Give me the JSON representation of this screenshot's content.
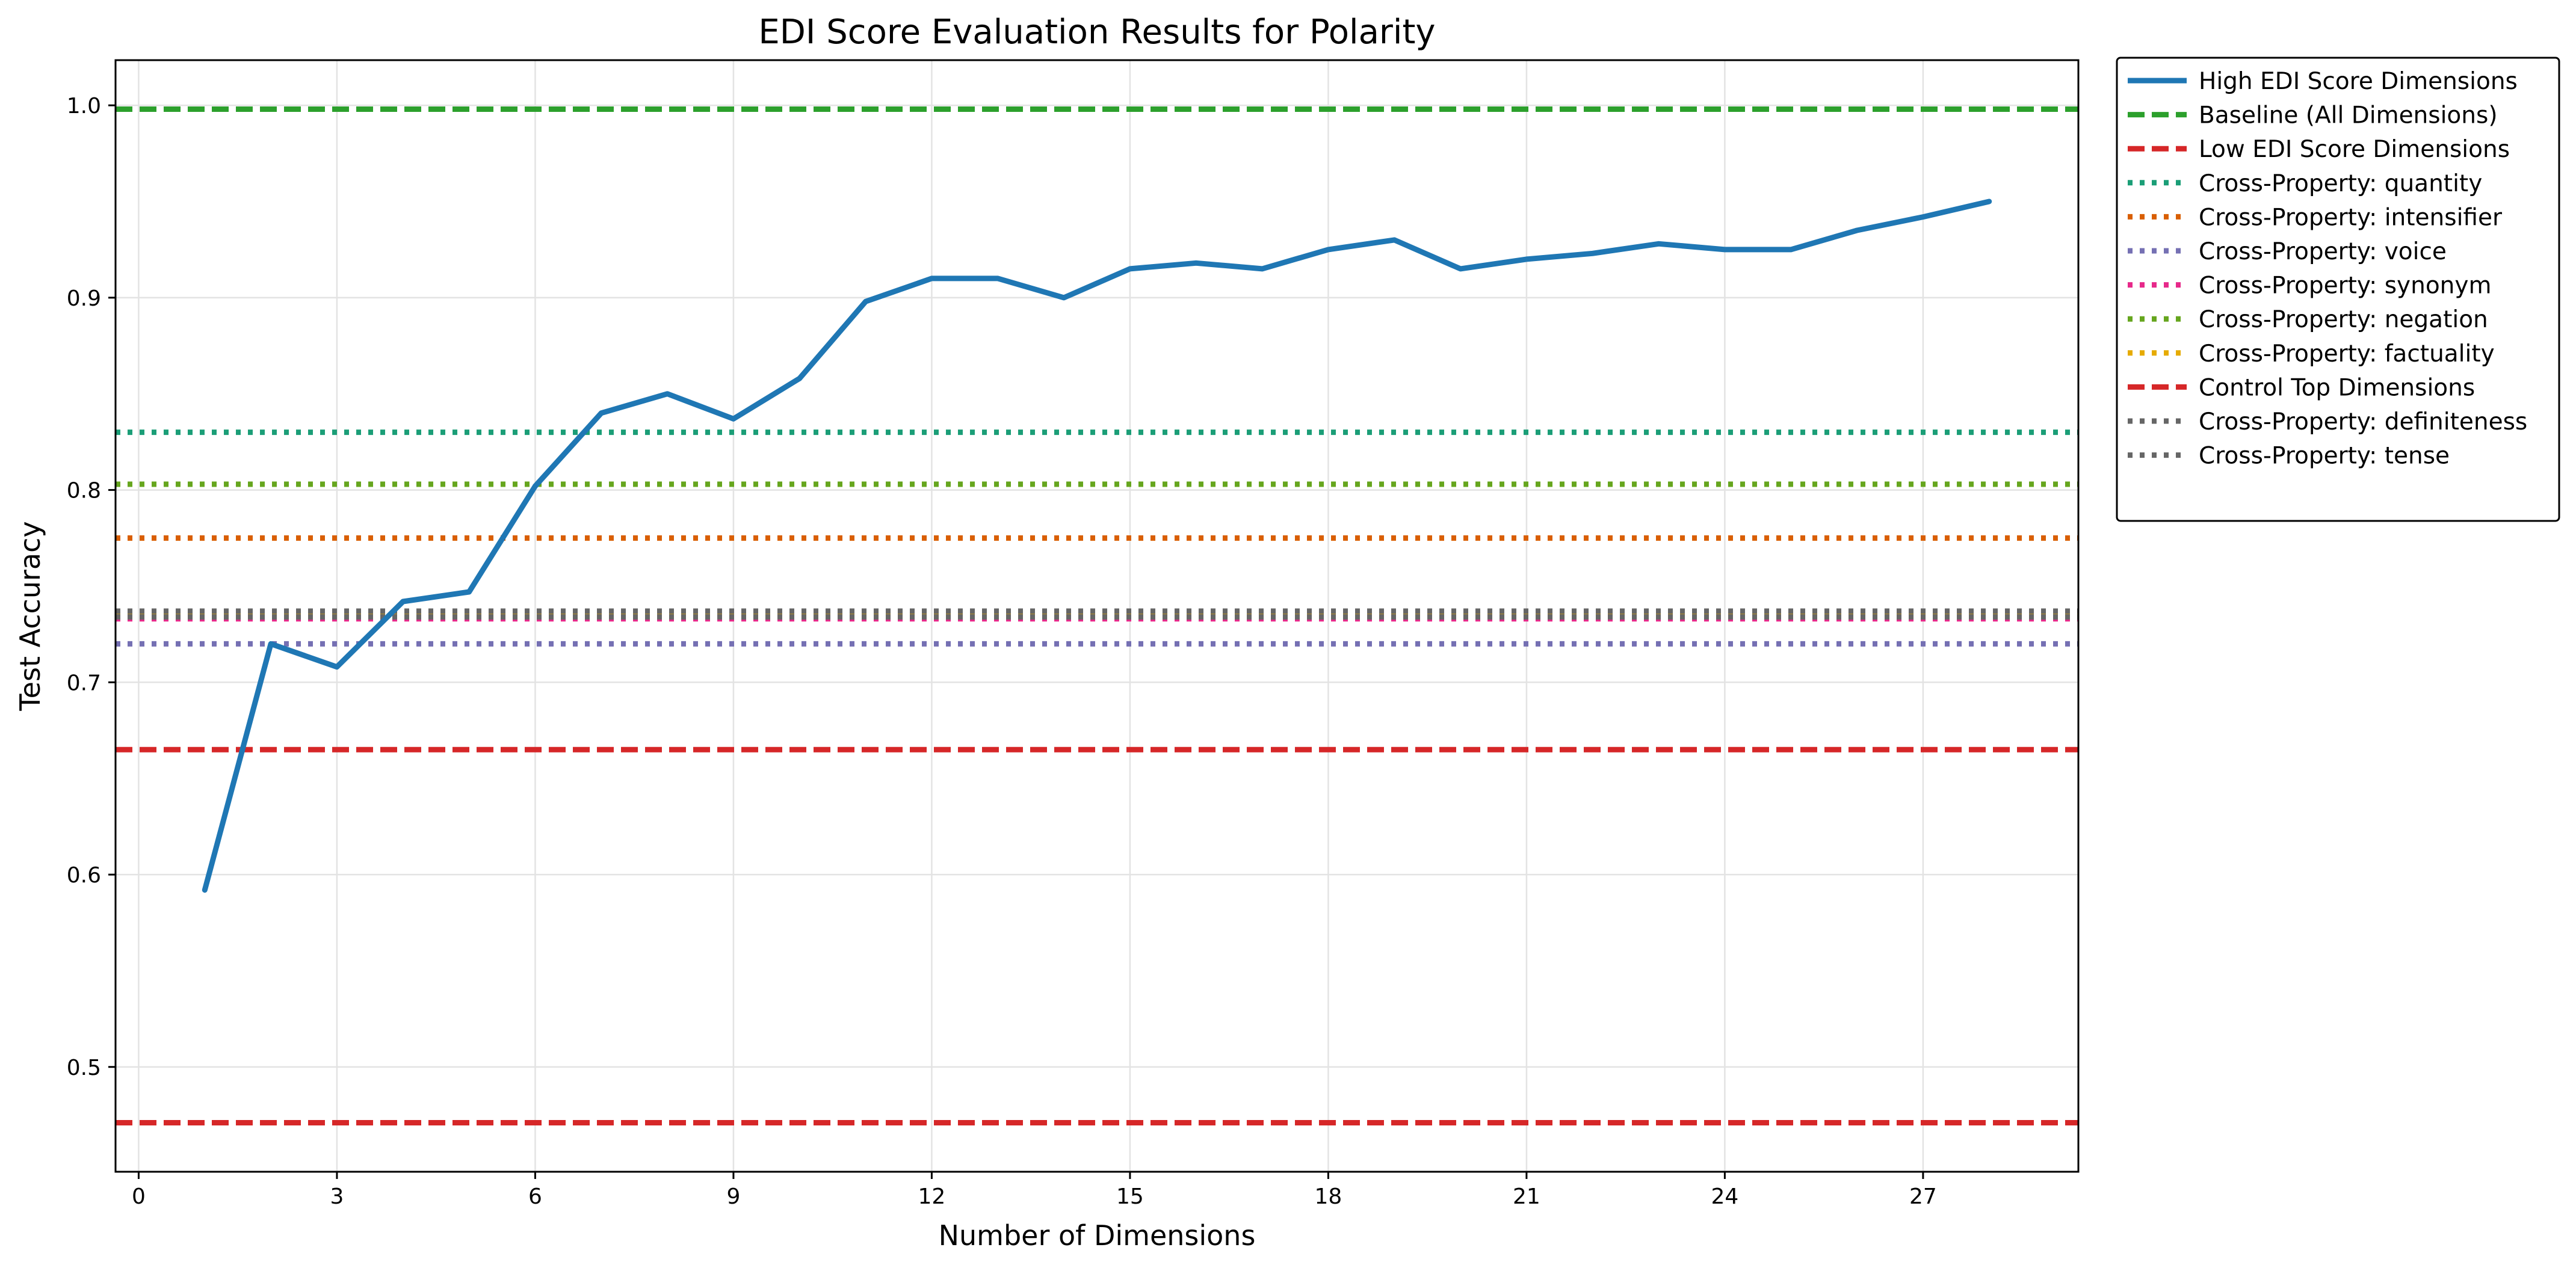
{
  "chart_data": {
    "type": "line",
    "title": "EDI Score Evaluation Results for Polarity",
    "xlabel": "Number of Dimensions",
    "ylabel": "Test Accuracy",
    "xlim": [
      -0.35,
      29.35
    ],
    "ylim": [
      0.4455,
      1.0235
    ],
    "xticks": [
      0,
      3,
      6,
      9,
      12,
      15,
      18,
      21,
      24,
      27
    ],
    "yticks": [
      0.5,
      0.6,
      0.7,
      0.8,
      0.9,
      1.0
    ],
    "ytick_labels": [
      "0.5",
      "0.6",
      "0.7",
      "0.8",
      "0.9",
      "1.0"
    ],
    "grid": true,
    "legend_position": "outside-right-top",
    "series": [
      {
        "name": "High EDI Score Dimensions",
        "style": "solid",
        "color": "#1f77b4",
        "x": [
          1,
          2,
          3,
          4,
          5,
          6,
          7,
          8,
          9,
          10,
          11,
          12,
          13,
          14,
          15,
          16,
          17,
          18,
          19,
          20,
          21,
          22,
          23,
          24,
          25,
          26,
          27,
          28
        ],
        "y": [
          0.592,
          0.72,
          0.708,
          0.742,
          0.747,
          0.802,
          0.84,
          0.85,
          0.837,
          0.858,
          0.898,
          0.91,
          0.91,
          0.9,
          0.915,
          0.918,
          0.915,
          0.925,
          0.93,
          0.915,
          0.92,
          0.923,
          0.928,
          0.925,
          0.925,
          0.935,
          0.942,
          0.95
        ]
      }
    ],
    "hlines": [
      {
        "name": "Baseline (All Dimensions)",
        "y": 0.998,
        "style": "dashed",
        "color": "#2ca02c"
      },
      {
        "name": "Low EDI Score Dimensions",
        "y": 0.471,
        "style": "dashed",
        "color": "#d62728"
      },
      {
        "name": "Cross-Property: quantity",
        "y": 0.83,
        "style": "dotted",
        "color": "#1b9e77"
      },
      {
        "name": "Cross-Property: intensifier",
        "y": 0.775,
        "style": "dotted",
        "color": "#d95f02"
      },
      {
        "name": "Cross-Property: voice",
        "y": 0.72,
        "style": "dotted",
        "color": "#7570b3"
      },
      {
        "name": "Cross-Property: synonym",
        "y": 0.733,
        "style": "dotted",
        "color": "#e7298a"
      },
      {
        "name": "Cross-Property: negation",
        "y": 0.803,
        "style": "dotted",
        "color": "#66a61e"
      },
      {
        "name": "Cross-Property: factuality",
        "y": 0.735,
        "style": "dotted",
        "color": "#e6ab02"
      },
      {
        "name": "Control Top Dimensions",
        "y": 0.665,
        "style": "dashed",
        "color": "#d62728"
      },
      {
        "name": "Cross-Property: definiteness",
        "y": 0.737,
        "style": "dotted",
        "color": "#666666"
      },
      {
        "name": "Cross-Property: tense",
        "y": 0.734,
        "style": "dotted",
        "color": "#666666"
      }
    ],
    "legend": [
      {
        "label": "High EDI Score Dimensions",
        "style": "solid",
        "color": "#1f77b4"
      },
      {
        "label": "Baseline (All Dimensions)",
        "style": "dashed",
        "color": "#2ca02c"
      },
      {
        "label": "Low EDI Score Dimensions",
        "style": "dashed",
        "color": "#d62728"
      },
      {
        "label": "Cross-Property: quantity",
        "style": "dotted",
        "color": "#1b9e77"
      },
      {
        "label": "Cross-Property: intensifier",
        "style": "dotted",
        "color": "#d95f02"
      },
      {
        "label": "Cross-Property: voice",
        "style": "dotted",
        "color": "#7570b3"
      },
      {
        "label": "Cross-Property: synonym",
        "style": "dotted",
        "color": "#e7298a"
      },
      {
        "label": "Cross-Property: negation",
        "style": "dotted",
        "color": "#66a61e"
      },
      {
        "label": "Cross-Property: factuality",
        "style": "dotted",
        "color": "#e6ab02"
      },
      {
        "label": "Control Top Dimensions",
        "style": "dashed",
        "color": "#d62728"
      },
      {
        "label": "Cross-Property: definiteness",
        "style": "dotted",
        "color": "#666666"
      },
      {
        "label": "Cross-Property: tense",
        "style": "dotted",
        "color": "#666666"
      }
    ]
  }
}
